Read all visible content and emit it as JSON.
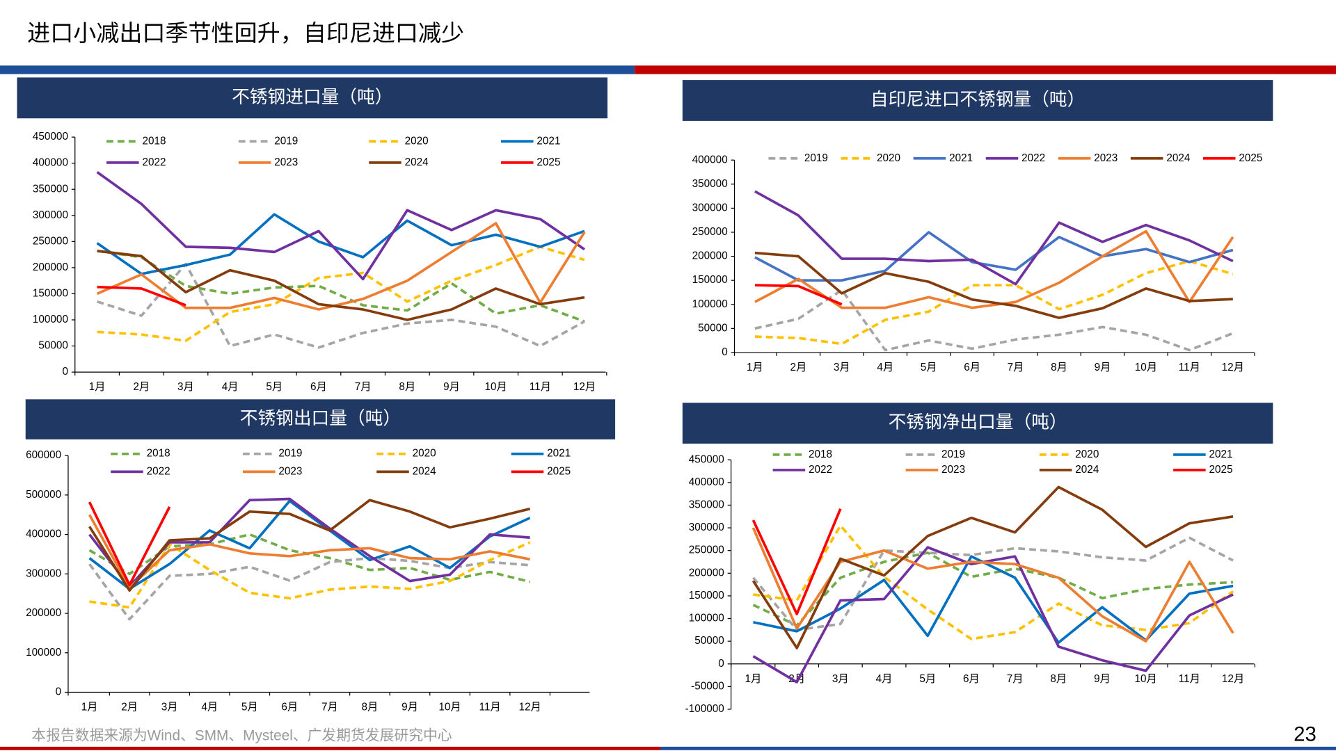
{
  "title": "进口小减出口季节性回升，自印尼进口减少",
  "source": "本报告数据来源为Wind、SMM、Mysteel、广发期货发展研究中心",
  "page_number": "23",
  "chart_data": [
    {
      "type": "line",
      "title": "不锈钢进口量（吨）",
      "categories": [
        "1月",
        "2月",
        "3月",
        "4月",
        "5月",
        "6月",
        "7月",
        "8月",
        "9月",
        "10月",
        "11月",
        "12月"
      ],
      "ylim": [
        0,
        450000
      ],
      "yticks": [
        0,
        50000,
        100000,
        150000,
        200000,
        250000,
        300000,
        350000,
        400000,
        450000
      ],
      "grid": false,
      "series": [
        {
          "name": "2018",
          "color": "#70ad47",
          "dash": true,
          "values": [
            232000,
            220000,
            165000,
            150000,
            162000,
            165000,
            128000,
            118000,
            170000,
            112000,
            128000,
            97000
          ]
        },
        {
          "name": "2019",
          "color": "#a5a5a5",
          "dash": true,
          "values": [
            135000,
            108000,
            207000,
            50000,
            72000,
            47000,
            75000,
            93000,
            100000,
            87000,
            50000,
            97000
          ]
        },
        {
          "name": "2020",
          "color": "#ffc000",
          "dash": true,
          "values": [
            77000,
            72000,
            60000,
            115000,
            130000,
            180000,
            190000,
            135000,
            175000,
            205000,
            240000,
            215000
          ]
        },
        {
          "name": "2021",
          "color": "#0070c0",
          "dash": false,
          "values": [
            247000,
            188000,
            205000,
            225000,
            302000,
            250000,
            220000,
            290000,
            243000,
            263000,
            240000,
            270000
          ]
        },
        {
          "name": "2022",
          "color": "#7030a0",
          "dash": false,
          "values": [
            383000,
            322000,
            240000,
            238000,
            230000,
            270000,
            178000,
            310000,
            272000,
            310000,
            293000,
            235000
          ]
        },
        {
          "name": "2023",
          "color": "#ed7d31",
          "dash": false,
          "values": [
            150000,
            187000,
            123000,
            123000,
            142000,
            120000,
            140000,
            175000,
            230000,
            285000,
            133000,
            268000
          ]
        },
        {
          "name": "2024",
          "color": "#843c0c",
          "dash": false,
          "values": [
            232000,
            222000,
            153000,
            195000,
            175000,
            130000,
            120000,
            100000,
            120000,
            160000,
            130000,
            143000
          ]
        },
        {
          "name": "2025",
          "color": "#ff0000",
          "dash": false,
          "values": [
            163000,
            160000,
            128000,
            null,
            null,
            null,
            null,
            null,
            null,
            null,
            null,
            null
          ]
        }
      ]
    },
    {
      "type": "line",
      "title": "自印尼进口不锈钢量（吨）",
      "categories": [
        "1月",
        "2月",
        "3月",
        "4月",
        "5月",
        "6月",
        "7月",
        "8月",
        "9月",
        "10月",
        "11月",
        "12月"
      ],
      "ylim": [
        0,
        400000
      ],
      "yticks": [
        0,
        50000,
        100000,
        150000,
        200000,
        250000,
        300000,
        350000,
        400000
      ],
      "grid": false,
      "series": [
        {
          "name": "2019",
          "color": "#a5a5a5",
          "dash": true,
          "values": [
            50000,
            70000,
            130000,
            5000,
            25000,
            8000,
            27000,
            37000,
            53000,
            37000,
            5000,
            40000
          ]
        },
        {
          "name": "2020",
          "color": "#ffc000",
          "dash": true,
          "values": [
            33000,
            30000,
            18000,
            68000,
            85000,
            140000,
            140000,
            90000,
            120000,
            165000,
            190000,
            163000
          ]
        },
        {
          "name": "2021",
          "color": "#4472c4",
          "dash": false,
          "values": [
            198000,
            150000,
            150000,
            170000,
            250000,
            188000,
            172000,
            240000,
            200000,
            215000,
            188000,
            213000
          ]
        },
        {
          "name": "2022",
          "color": "#7030a0",
          "dash": false,
          "values": [
            335000,
            285000,
            195000,
            195000,
            190000,
            193000,
            142000,
            270000,
            230000,
            265000,
            233000,
            190000
          ]
        },
        {
          "name": "2023",
          "color": "#ed7d31",
          "dash": false,
          "values": [
            105000,
            153000,
            93000,
            93000,
            115000,
            93000,
            105000,
            145000,
            200000,
            252000,
            105000,
            240000
          ]
        },
        {
          "name": "2024",
          "color": "#843c0c",
          "dash": false,
          "values": [
            207000,
            200000,
            123000,
            165000,
            147000,
            110000,
            97000,
            72000,
            92000,
            133000,
            107000,
            111000
          ]
        },
        {
          "name": "2025",
          "color": "#ff0000",
          "dash": false,
          "values": [
            140000,
            138000,
            100000,
            null,
            null,
            null,
            null,
            null,
            null,
            null,
            null,
            null
          ]
        }
      ]
    },
    {
      "type": "line",
      "title": "不锈钢出口量（吨）",
      "categories": [
        "1月",
        "2月",
        "3月",
        "4月",
        "5月",
        "6月",
        "7月",
        "8月",
        "9月",
        "10月",
        "11月",
        "12月"
      ],
      "ylim": [
        0,
        600000
      ],
      "yticks": [
        0,
        100000,
        200000,
        300000,
        400000,
        500000,
        600000
      ],
      "grid": false,
      "series": [
        {
          "name": "2018",
          "color": "#70ad47",
          "dash": true,
          "values": [
            360000,
            300000,
            370000,
            375000,
            400000,
            360000,
            340000,
            310000,
            315000,
            285000,
            305000,
            280000
          ]
        },
        {
          "name": "2019",
          "color": "#a5a5a5",
          "dash": true,
          "values": [
            325000,
            185000,
            295000,
            300000,
            318000,
            283000,
            330000,
            340000,
            333000,
            315000,
            330000,
            322000
          ]
        },
        {
          "name": "2020",
          "color": "#ffc000",
          "dash": true,
          "values": [
            230000,
            215000,
            375000,
            310000,
            252000,
            238000,
            260000,
            268000,
            262000,
            282000,
            335000,
            380000
          ]
        },
        {
          "name": "2021",
          "color": "#0070c0",
          "dash": false,
          "values": [
            340000,
            262000,
            325000,
            410000,
            365000,
            485000,
            410000,
            335000,
            370000,
            315000,
            395000,
            442000
          ]
        },
        {
          "name": "2022",
          "color": "#7030a0",
          "dash": false,
          "values": [
            400000,
            268000,
            380000,
            380000,
            487000,
            490000,
            415000,
            345000,
            282000,
            298000,
            400000,
            392000
          ]
        },
        {
          "name": "2023",
          "color": "#ed7d31",
          "dash": false,
          "values": [
            450000,
            265000,
            360000,
            375000,
            352000,
            345000,
            360000,
            365000,
            340000,
            337000,
            357000,
            337000
          ]
        },
        {
          "name": "2024",
          "color": "#843c0c",
          "dash": false,
          "values": [
            420000,
            258000,
            385000,
            390000,
            458000,
            452000,
            410000,
            487000,
            458000,
            418000,
            440000,
            465000
          ]
        },
        {
          "name": "2025",
          "color": "#ff0000",
          "dash": false,
          "values": [
            482000,
            272000,
            470000,
            null,
            null,
            null,
            null,
            null,
            null,
            null,
            null,
            null
          ]
        }
      ]
    },
    {
      "type": "line",
      "title": "不锈钢净出口量（吨）",
      "categories": [
        "1月",
        "2月",
        "3月",
        "4月",
        "5月",
        "6月",
        "7月",
        "8月",
        "9月",
        "10月",
        "11月",
        "12月"
      ],
      "ylim": [
        -100000,
        450000
      ],
      "yticks": [
        -100000,
        -50000,
        0,
        50000,
        100000,
        150000,
        200000,
        250000,
        300000,
        350000,
        400000,
        450000
      ],
      "grid": false,
      "series": [
        {
          "name": "2018",
          "color": "#70ad47",
          "dash": true,
          "values": [
            130000,
            85000,
            190000,
            225000,
            245000,
            192000,
            210000,
            190000,
            145000,
            165000,
            175000,
            180000
          ]
        },
        {
          "name": "2019",
          "color": "#a5a5a5",
          "dash": true,
          "values": [
            190000,
            75000,
            88000,
            250000,
            245000,
            240000,
            255000,
            248000,
            235000,
            228000,
            278000,
            228000
          ]
        },
        {
          "name": "2020",
          "color": "#ffc000",
          "dash": true,
          "values": [
            153000,
            140000,
            305000,
            192000,
            120000,
            55000,
            70000,
            133000,
            85000,
            75000,
            90000,
            160000
          ]
        },
        {
          "name": "2021",
          "color": "#0070c0",
          "dash": false,
          "values": [
            92000,
            72000,
            122000,
            185000,
            62000,
            237000,
            190000,
            47000,
            125000,
            52000,
            155000,
            172000
          ]
        },
        {
          "name": "2022",
          "color": "#7030a0",
          "dash": false,
          "values": [
            17000,
            -40000,
            140000,
            143000,
            257000,
            220000,
            237000,
            38000,
            8000,
            -15000,
            107000,
            153000
          ]
        },
        {
          "name": "2023",
          "color": "#ed7d31",
          "dash": false,
          "values": [
            300000,
            78000,
            225000,
            250000,
            210000,
            225000,
            220000,
            190000,
            105000,
            50000,
            225000,
            68000
          ]
        },
        {
          "name": "2024",
          "color": "#843c0c",
          "dash": false,
          "values": [
            183000,
            35000,
            232000,
            195000,
            282000,
            322000,
            290000,
            390000,
            340000,
            258000,
            310000,
            325000
          ]
        },
        {
          "name": "2025",
          "color": "#ff0000",
          "dash": false,
          "values": [
            317000,
            110000,
            342000,
            null,
            null,
            null,
            null,
            null,
            null,
            null,
            null,
            null
          ]
        }
      ]
    }
  ]
}
